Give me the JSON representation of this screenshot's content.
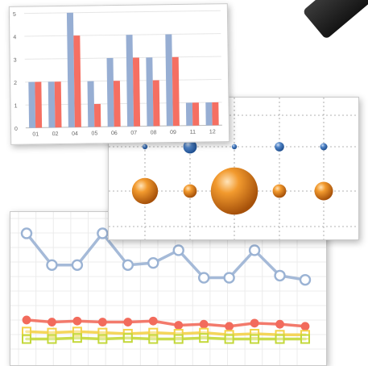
{
  "chart_data": [
    {
      "type": "bar",
      "categories": [
        "01",
        "02",
        "04",
        "05",
        "06",
        "07",
        "08",
        "09",
        "11",
        "12"
      ],
      "series": [
        {
          "values": [
            2,
            2,
            5,
            2,
            3,
            4,
            3,
            4,
            1,
            1
          ]
        },
        {
          "values": [
            2,
            2,
            4,
            1,
            2,
            3,
            2,
            3,
            1,
            1
          ]
        }
      ],
      "y_ticks": [
        "0",
        "1",
        "2",
        "3",
        "4",
        "5"
      ],
      "ylim": [
        0,
        5
      ],
      "grid": true,
      "colors": [
        "#97aed3",
        "#f56f62"
      ]
    },
    {
      "type": "scatter",
      "rows": [
        {
          "x": [
            1,
            2,
            3,
            4,
            5
          ],
          "size": [
            1,
            3,
            1,
            2,
            1.5
          ],
          "color": "#3f6fb2"
        },
        {
          "x": [
            1,
            2,
            3,
            4,
            5
          ],
          "size": [
            6,
            3,
            11,
            3,
            4.2
          ],
          "color": "#e17d14"
        }
      ],
      "grid": true
    },
    {
      "type": "line",
      "series": [
        {
          "color": "#9bb3d4",
          "marker": "circle",
          "values": [
            6.0,
            4.5,
            4.5,
            6.0,
            4.5,
            4.6,
            5.2,
            3.9,
            3.9,
            5.2,
            4.0,
            3.8
          ]
        },
        {
          "color": "#f26b5c",
          "marker": "circle",
          "values": [
            1.9,
            1.8,
            1.85,
            1.8,
            1.8,
            1.85,
            1.65,
            1.7,
            1.6,
            1.75,
            1.7,
            1.6
          ]
        },
        {
          "color": "#f4d24a",
          "marker": "square",
          "values": [
            1.35,
            1.3,
            1.35,
            1.3,
            1.25,
            1.3,
            1.25,
            1.3,
            1.2,
            1.25,
            1.2,
            1.2
          ]
        },
        {
          "color": "#c4d83a",
          "marker": "square",
          "values": [
            1.0,
            1.0,
            1.05,
            1.0,
            1.05,
            1.0,
            1.0,
            1.05,
            1.0,
            1.0,
            1.0,
            1.0
          ]
        }
      ],
      "grid": true
    }
  ]
}
